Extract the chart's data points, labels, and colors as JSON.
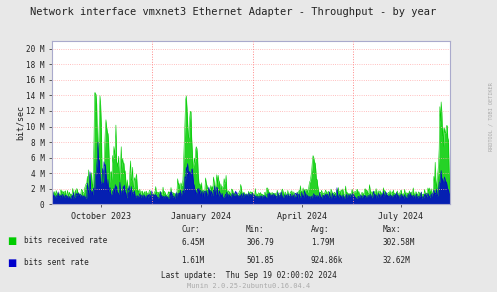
{
  "title": "Network interface vmxnet3 Ethernet Adapter - Throughput - by year",
  "ylabel": "bit/sec",
  "side_label": "RRDTOOL / TOBI OETIKER",
  "bg_color": "#e8e8e8",
  "plot_bg_color": "#ffffff",
  "grid_color": "#ffaaaa",
  "axis_color": "#aaaacc",
  "text_color": "#222222",
  "green_color": "#00cc00",
  "blue_color": "#0000cc",
  "yticks": [
    0,
    2000000,
    4000000,
    6000000,
    8000000,
    10000000,
    12000000,
    14000000,
    16000000,
    18000000,
    20000000
  ],
  "ytick_labels": [
    "0",
    "2 M",
    "4 M",
    "6 M",
    "8 M",
    "10 M",
    "12 M",
    "14 M",
    "16 M",
    "18 M",
    "20 M"
  ],
  "xtick_labels": [
    "October 2023",
    "January 2024",
    "April 2024",
    "July 2024"
  ],
  "xtick_positions": [
    45,
    137,
    229,
    320
  ],
  "legend": [
    {
      "label": "bits received rate",
      "color": "#00cc00"
    },
    {
      "label": "bits sent rate",
      "color": "#0000cc"
    }
  ],
  "stats_headers": [
    "Cur:",
    "Min:",
    "Avg:",
    "Max:"
  ],
  "stats": [
    [
      "6.45M",
      "306.79",
      "1.79M",
      "302.58M"
    ],
    [
      "1.61M",
      "501.85",
      "924.86k",
      "32.62M"
    ]
  ],
  "last_update": "Last update:  Thu Sep 19 02:00:02 2024",
  "munin_version": "Munin 2.0.25-2ubuntu0.16.04.4",
  "xmin": 0,
  "xmax": 365,
  "ymin": 0,
  "ymax": 21000000,
  "vlines_x": [
    92,
    184,
    276
  ],
  "num_points": 600
}
